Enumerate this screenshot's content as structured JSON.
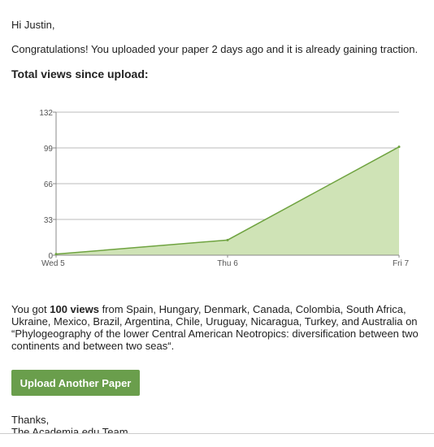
{
  "email": {
    "greeting": "Hi Justin,",
    "congrats": "Congratulations! You uploaded your paper 2 days ago and it is already gaining traction.",
    "views_heading": "Total views since upload:",
    "summary_prefix": "You got ",
    "summary_views": "100 views",
    "summary_suffix": " from Spain, Hungary, Denmark, Canada, Colombia, South Africa, Ukraine, Mexico, Brazil, Argentina, Chile, Uruguay, Nicaragua, Turkey, and Australia on “Phylogeography of the lower Central American Neotropics: diversification between two continents and between two seas“.",
    "button_label": "Upload Another Paper",
    "thanks": "Thanks,",
    "signature": "The Academia.edu Team"
  },
  "colors": {
    "fill": "#cfe3b6",
    "line": "#6fa340",
    "grid": "#bbbbbb",
    "button": "#6a9e4c"
  },
  "chart_data": {
    "type": "area",
    "categories": [
      "Wed  5",
      "Thu  6",
      "Fri  7"
    ],
    "x": [
      0,
      1,
      2
    ],
    "values": [
      1,
      14,
      100
    ],
    "ylim": [
      0,
      132
    ],
    "yticks": [
      0,
      33,
      66,
      99,
      132
    ],
    "grid": true
  }
}
